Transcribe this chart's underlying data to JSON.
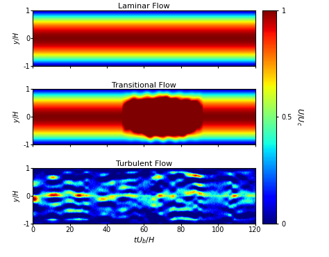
{
  "title_laminar": "Laminar Flow",
  "title_transitional": "Transitional Flow",
  "title_turbulent": "Turbulent Flow",
  "xlabel": "$tU_b/H$",
  "ylabel": "$y/H$",
  "colorbar_label": "$U/U_c$",
  "colorbar_ticks": [
    0,
    0.5,
    1
  ],
  "colorbar_ticklabels": [
    "0",
    "0.5",
    "1"
  ],
  "t_min": 0,
  "t_max": 120,
  "y_min": -1,
  "y_max": 1,
  "xticks": [
    0,
    20,
    40,
    60,
    80,
    100,
    120
  ],
  "yticks": [
    -1,
    0,
    1
  ],
  "nx": 600,
  "ny": 150,
  "figsize": [
    4.74,
    3.7
  ],
  "dpi": 100
}
